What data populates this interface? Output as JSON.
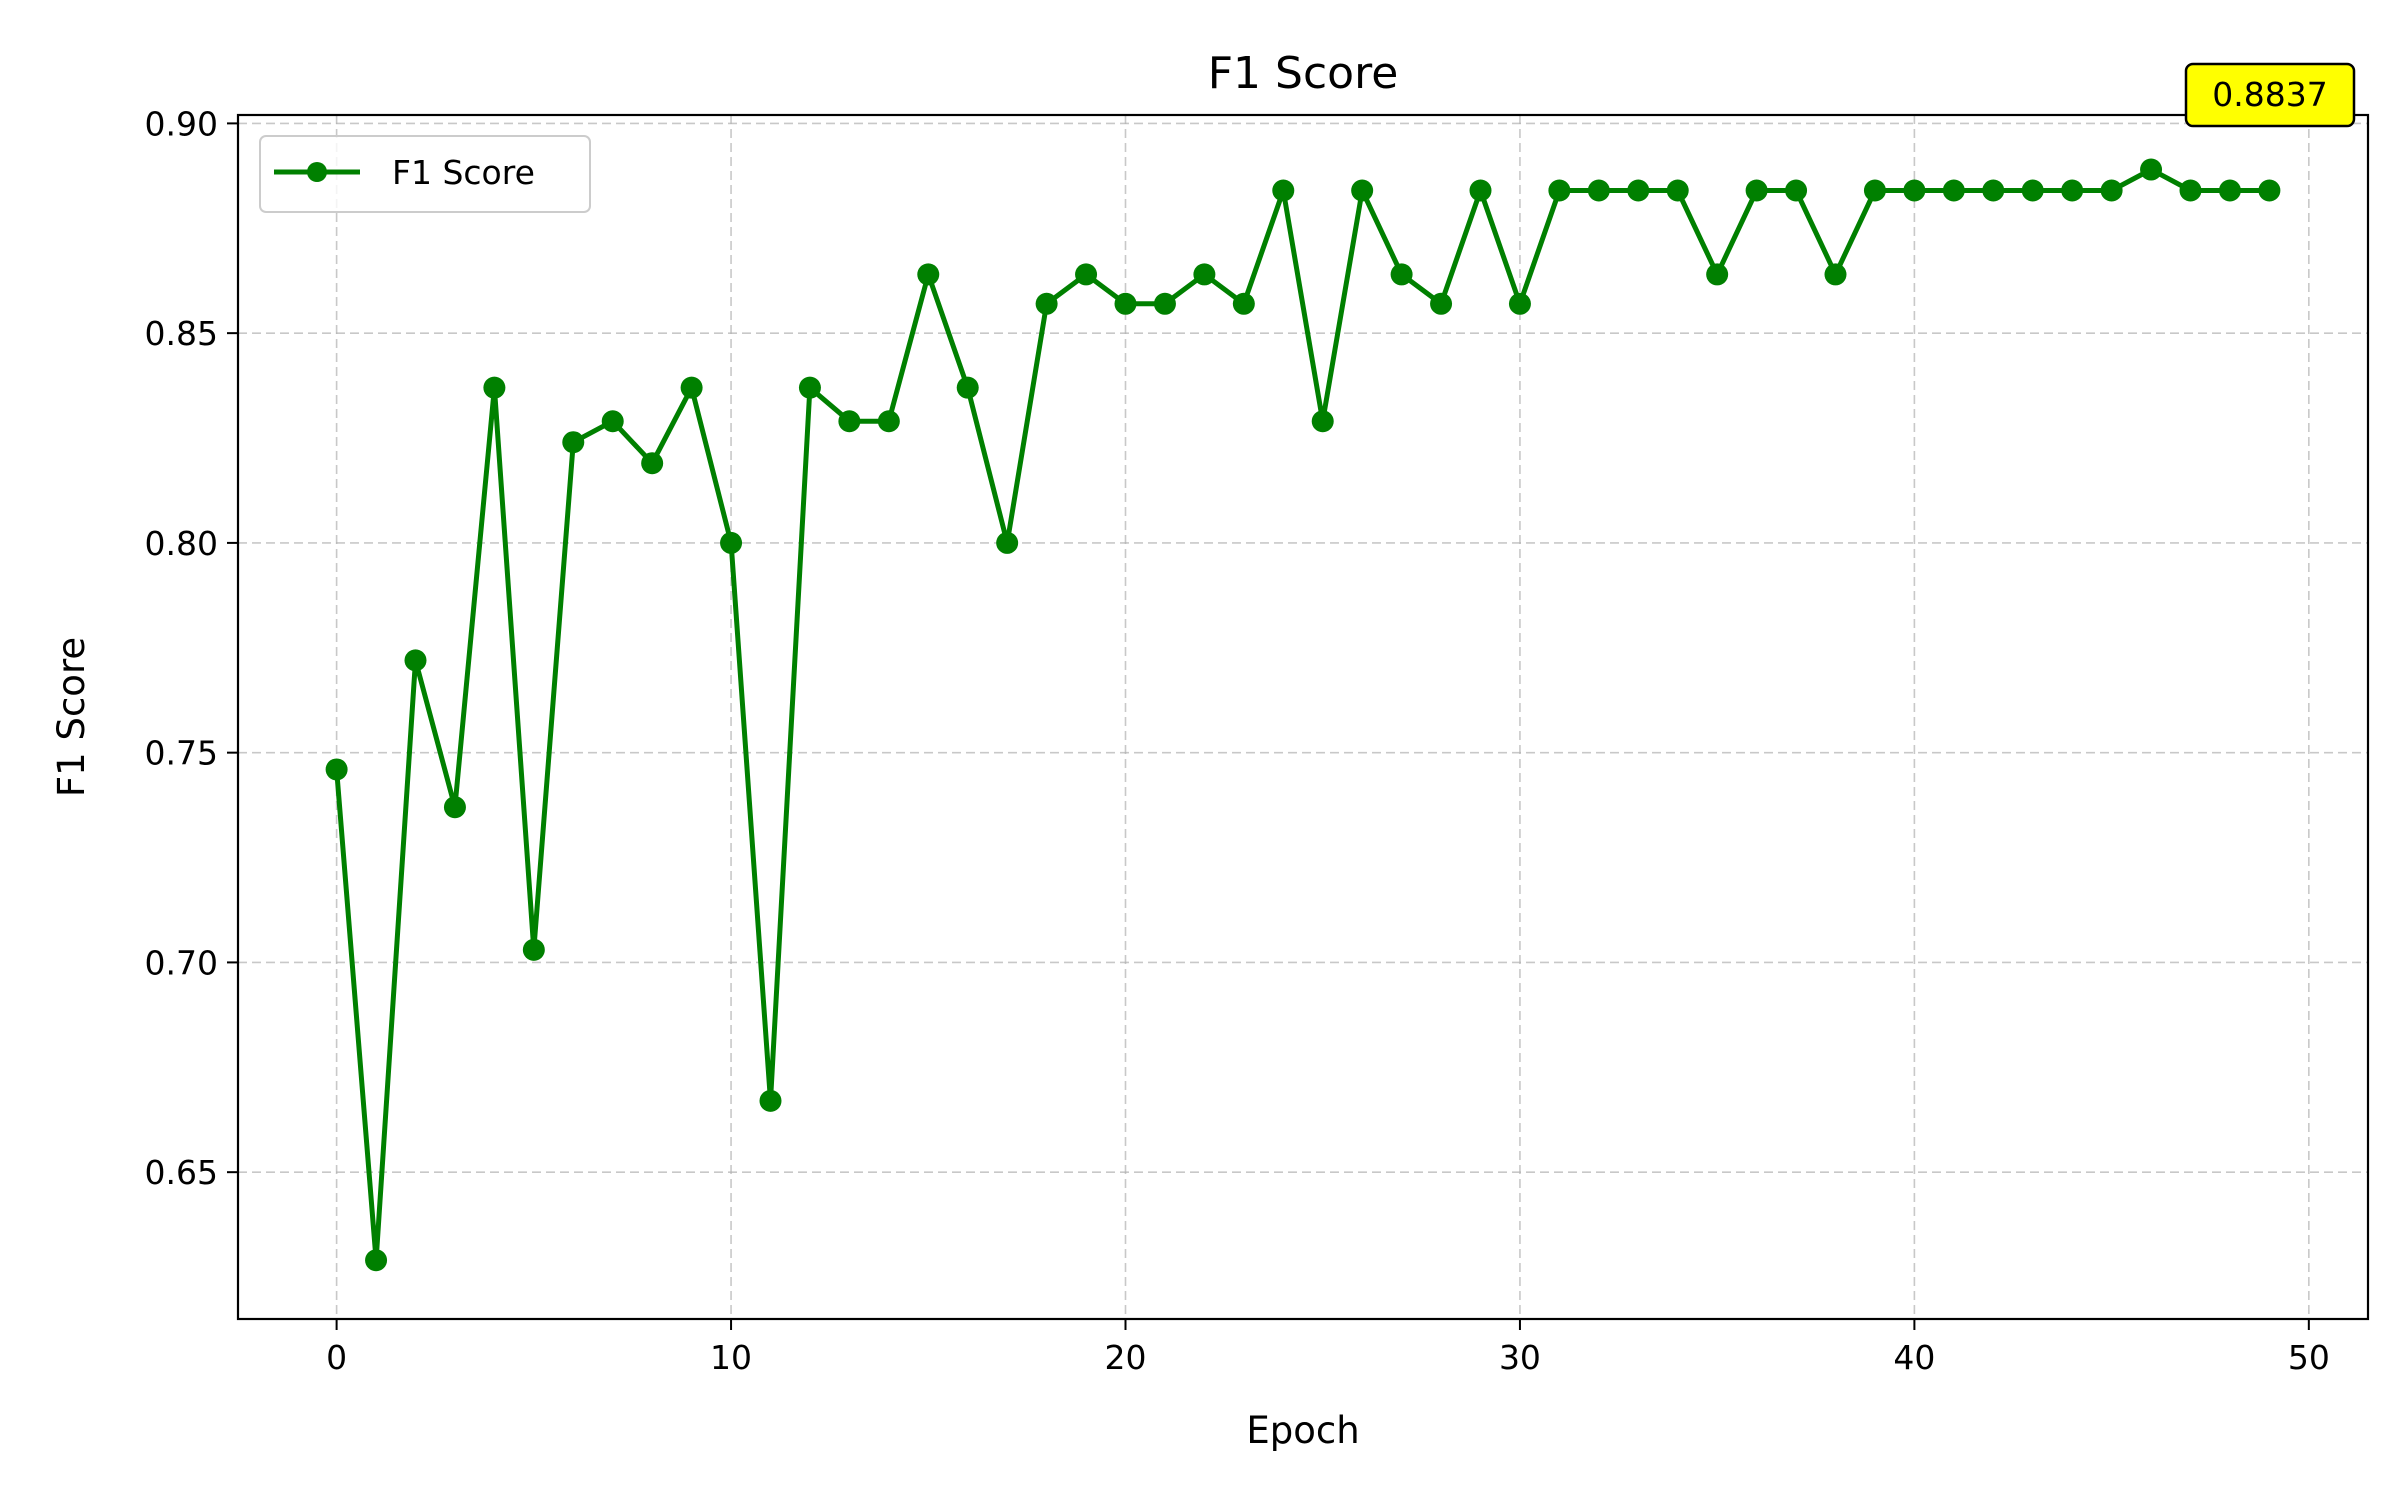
{
  "chart_data": {
    "type": "line",
    "title": "F1 Score",
    "xlabel": "Epoch",
    "ylabel": "F1 Score",
    "xlim": [
      -2.5,
      51.5
    ],
    "ylim": [
      0.615,
      0.902
    ],
    "xticks": [
      0,
      10,
      20,
      30,
      40,
      50
    ],
    "xtick_labels": [
      "0",
      "10",
      "20",
      "30",
      "40",
      "50"
    ],
    "yticks": [
      0.65,
      0.7,
      0.75,
      0.8,
      0.85,
      0.9
    ],
    "ytick_labels": [
      "0.65",
      "0.70",
      "0.75",
      "0.80",
      "0.85",
      "0.90"
    ],
    "grid": true,
    "legend_position": "top-left",
    "series": [
      {
        "name": "F1 Score",
        "color": "#008000",
        "marker": "circle",
        "x": [
          0,
          1,
          2,
          3,
          4,
          5,
          6,
          7,
          8,
          9,
          10,
          11,
          12,
          13,
          14,
          15,
          16,
          17,
          18,
          19,
          20,
          21,
          22,
          23,
          24,
          25,
          26,
          27,
          28,
          29,
          30,
          31,
          32,
          33,
          34,
          35,
          36,
          37,
          38,
          39,
          40,
          41,
          42,
          43,
          44,
          45,
          46,
          47,
          48,
          49
        ],
        "values": [
          0.746,
          0.629,
          0.772,
          0.737,
          0.837,
          0.703,
          0.824,
          0.829,
          0.819,
          0.837,
          0.8,
          0.667,
          0.837,
          0.829,
          0.829,
          0.864,
          0.837,
          0.8,
          0.857,
          0.864,
          0.857,
          0.857,
          0.864,
          0.857,
          0.884,
          0.829,
          0.884,
          0.864,
          0.857,
          0.884,
          0.857,
          0.884,
          0.884,
          0.884,
          0.884,
          0.864,
          0.884,
          0.884,
          0.864,
          0.884,
          0.884,
          0.884,
          0.884,
          0.884,
          0.884,
          0.884,
          0.889,
          0.884,
          0.884,
          0.884
        ]
      }
    ],
    "annotation": {
      "text": "0.8837",
      "background": "#ffff00"
    }
  }
}
